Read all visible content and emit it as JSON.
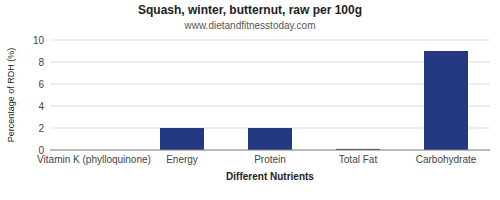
{
  "chart_data": {
    "type": "bar",
    "title": "Squash, winter, butternut, raw per 100g",
    "subtitle": "www.dietandfitnesstoday.com",
    "xlabel": "Different Nutrients",
    "ylabel": "Percentage of RDH (%)",
    "categories": [
      "Vitamin K (phylloquinone)",
      "Energy",
      "Protein",
      "Total Fat",
      "Carbohydrate"
    ],
    "values": [
      0.0,
      2.0,
      2.0,
      0.1,
      9.0
    ],
    "color": "#253882",
    "ylim": [
      0,
      10
    ],
    "yticks": [
      0,
      2,
      4,
      6,
      8,
      10
    ],
    "grid": true
  }
}
